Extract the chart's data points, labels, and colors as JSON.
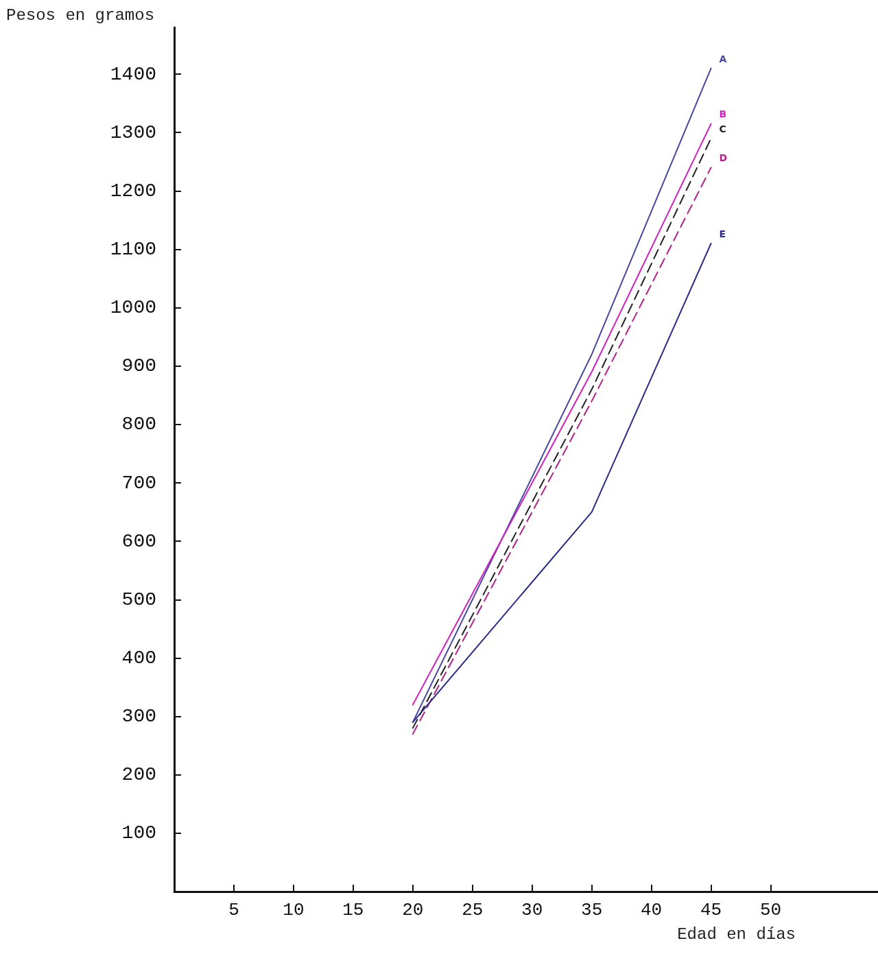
{
  "chart_data": {
    "type": "line",
    "xlabel": "Edad en días",
    "ylabel": "Pesos en gramos",
    "x": [
      20,
      35,
      45
    ],
    "xlim": [
      0,
      59
    ],
    "xticks": [
      5,
      10,
      15,
      20,
      25,
      30,
      35,
      40,
      45,
      50
    ],
    "ylim": [
      0,
      1480
    ],
    "yticks": [
      100,
      200,
      300,
      400,
      500,
      600,
      700,
      800,
      900,
      1000,
      1100,
      1200,
      1300,
      1400
    ],
    "grid": false,
    "legend": false,
    "marker": "none",
    "series": [
      {
        "name": "A",
        "color": "#4848a0",
        "line_style": "solid",
        "values": [
          290,
          920,
          1410
        ]
      },
      {
        "name": "B",
        "color": "#d020c0",
        "line_style": "solid",
        "values": [
          320,
          890,
          1315
        ]
      },
      {
        "name": "C",
        "color": "#202020",
        "line_style": "dashed",
        "values": [
          280,
          860,
          1290
        ]
      },
      {
        "name": "D",
        "color": "#b0208a",
        "line_style": "dashed",
        "values": [
          270,
          840,
          1240
        ]
      },
      {
        "name": "E",
        "color": "#2a2a8a",
        "line_style": "solid",
        "values": [
          290,
          650,
          1110
        ]
      }
    ]
  }
}
